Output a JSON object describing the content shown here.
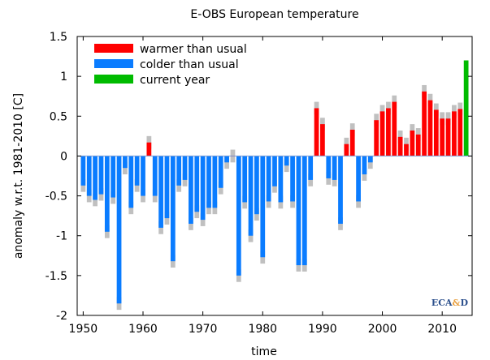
{
  "chart_data": {
    "type": "bar",
    "title": "E-OBS European temperature",
    "xlabel": "time",
    "ylabel": "anomaly w.r.t. 1981-2010 [C]",
    "xlim": [
      1949,
      2015
    ],
    "ylim": [
      -2,
      1.5
    ],
    "x_ticks": [
      1950,
      1960,
      1970,
      1980,
      1990,
      2000,
      2010
    ],
    "y_ticks": [
      1.5,
      1,
      0.5,
      0,
      -0.5,
      -1,
      -1.5,
      -2
    ],
    "y_tick_labels": [
      "1.5",
      "1",
      "0.5",
      "0",
      "-0.5",
      "-1",
      "-1.5",
      "-2"
    ],
    "legend": {
      "placement": "top-left",
      "entries": [
        {
          "label": "warmer than usual",
          "color": "#ff0000"
        },
        {
          "label": "colder than usual",
          "color": "#0a7cff"
        },
        {
          "label": "current year",
          "color": "#00bb00"
        }
      ]
    },
    "uncertainty_color": "#c0c0c0",
    "uncertainty": 0.08,
    "years": [
      1950,
      1951,
      1952,
      1953,
      1954,
      1955,
      1956,
      1957,
      1958,
      1959,
      1960,
      1961,
      1962,
      1963,
      1964,
      1965,
      1966,
      1967,
      1968,
      1969,
      1970,
      1971,
      1972,
      1973,
      1974,
      1975,
      1976,
      1977,
      1978,
      1979,
      1980,
      1981,
      1982,
      1983,
      1984,
      1985,
      1986,
      1987,
      1988,
      1989,
      1990,
      1991,
      1992,
      1993,
      1994,
      1995,
      1996,
      1997,
      1998,
      1999,
      2000,
      2001,
      2002,
      2003,
      2004,
      2005,
      2006,
      2007,
      2008,
      2009,
      2010,
      2011,
      2012,
      2013,
      2014
    ],
    "values": [
      -0.37,
      -0.5,
      -0.55,
      -0.48,
      -0.95,
      -0.52,
      -1.85,
      -0.15,
      -0.65,
      -0.37,
      -0.5,
      0.17,
      -0.5,
      -0.9,
      -0.78,
      -1.32,
      -0.37,
      -0.3,
      -0.85,
      -0.7,
      -0.8,
      -0.65,
      -0.65,
      -0.4,
      -0.08,
      0.0,
      -1.5,
      -0.58,
      -1.0,
      -0.73,
      -1.27,
      -0.57,
      -0.38,
      -0.58,
      -0.12,
      -0.57,
      -1.37,
      -1.37,
      -0.3,
      0.6,
      0.4,
      -0.28,
      -0.3,
      -0.85,
      0.15,
      0.33,
      -0.57,
      -0.23,
      -0.08,
      0.45,
      0.56,
      0.6,
      0.68,
      0.24,
      0.15,
      0.32,
      0.27,
      0.81,
      0.7,
      0.58,
      0.47,
      0.47,
      0.56,
      0.59,
      1.2
    ],
    "current_year": 2014
  },
  "logo": {
    "text_a": "ECA",
    "text_amp": "&",
    "text_d": "D"
  }
}
